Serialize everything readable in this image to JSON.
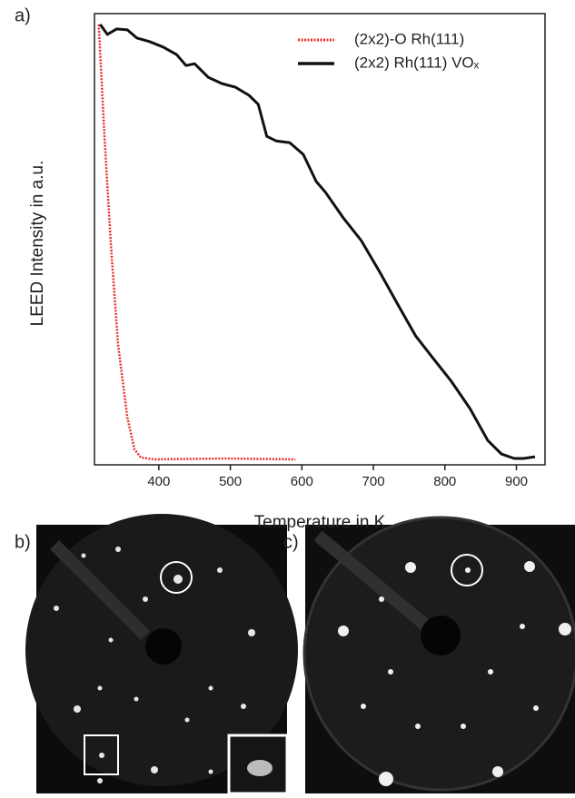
{
  "chart_data": {
    "type": "line",
    "panel_labels": [
      "a)",
      "b)",
      "c)"
    ],
    "x_label": "Temperature in K",
    "y_label": "LEED Intensity in a.u.",
    "xlim": [
      310,
      940
    ],
    "xticks": [
      400,
      500,
      600,
      700,
      800,
      900
    ],
    "ylim": [
      0,
      100
    ],
    "legend": "upper right",
    "series": [
      {
        "name": "(2x2)-O Rh(111)",
        "color": "#e8322d",
        "dash": true,
        "x": [
          316,
          324,
          333,
          343,
          356,
          366,
          375,
          394,
          494,
          591
        ],
        "values": [
          97.6,
          72.8,
          48.7,
          26.6,
          10.5,
          3.4,
          1.6,
          1.2,
          1.4,
          1.2
        ]
      },
      {
        "name": "(2x2) Rh(111) VOₓ",
        "color": "#111111",
        "dash": false,
        "x": [
          318,
          328,
          341,
          356,
          369,
          387,
          406,
          425,
          438,
          450,
          469,
          488,
          507,
          526,
          539,
          551,
          564,
          583,
          602,
          620,
          633,
          658,
          683,
          709,
          734,
          759,
          784,
          809,
          835,
          860,
          879,
          897,
          910,
          926
        ],
        "values": [
          97.6,
          95.4,
          96.6,
          96.4,
          94.6,
          93.8,
          92.6,
          90.9,
          88.5,
          88.9,
          85.9,
          84.5,
          83.7,
          81.9,
          79.9,
          72.8,
          71.8,
          71.4,
          68.8,
          62.8,
          60.4,
          54.7,
          49.7,
          42.7,
          35.6,
          28.6,
          23.5,
          18.5,
          12.5,
          5.4,
          2.4,
          1.4,
          1.4,
          1.8
        ]
      }
    ]
  }
}
